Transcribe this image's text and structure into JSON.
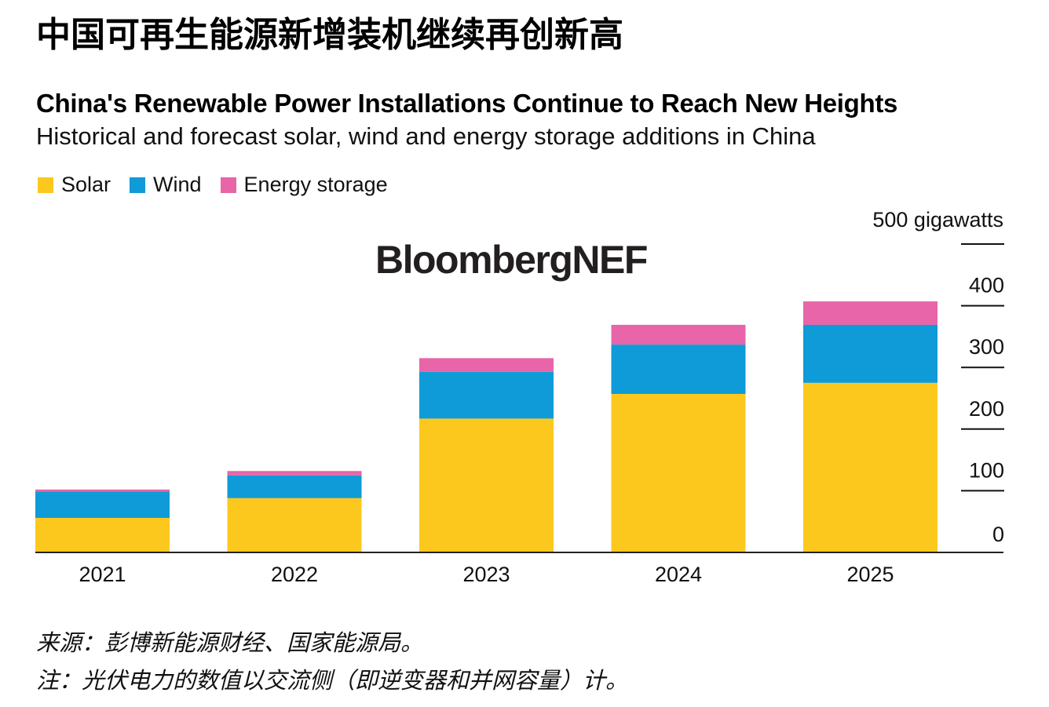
{
  "header": {
    "cn_title": "中国可再生能源新增装机继续再创新高",
    "en_title": "China's Renewable Power Installations Continue to Reach New Heights",
    "subtitle": "Historical and forecast solar, wind and energy storage additions in China"
  },
  "logo_text": "BloombergNEF",
  "footnotes": {
    "source": "来源：彭博新能源财经、国家能源局。",
    "note": "注：光伏电力的数值以交流侧（即逆变器和并网容量）计。"
  },
  "chart_data": {
    "type": "bar",
    "stacked": true,
    "title": "China's Renewable Power Installations Continue to Reach New Heights",
    "subtitle": "Historical and forecast solar, wind and energy storage additions in China",
    "xlabel": "",
    "ylabel": "gigawatts",
    "y_unit_label": "500 gigawatts",
    "ylim": [
      0,
      500
    ],
    "yticks": [
      0,
      100,
      200,
      300,
      400,
      500
    ],
    "ytick_labels": [
      "0",
      "100",
      "200",
      "300",
      "400",
      "500 gigawatts"
    ],
    "y_axis_side": "right",
    "grid": false,
    "legend_position": "top-left",
    "categories": [
      "2021",
      "2022",
      "2023",
      "2024",
      "2025"
    ],
    "series": [
      {
        "name": "Solar",
        "color": "#fcc81d",
        "values": [
          56,
          88,
          217,
          257,
          275
        ]
      },
      {
        "name": "Wind",
        "color": "#0f9bd7",
        "values": [
          43,
          37,
          76,
          80,
          94
        ]
      },
      {
        "name": "Energy storage",
        "color": "#e765a8",
        "values": [
          3,
          7,
          22,
          32,
          38
        ]
      }
    ]
  }
}
